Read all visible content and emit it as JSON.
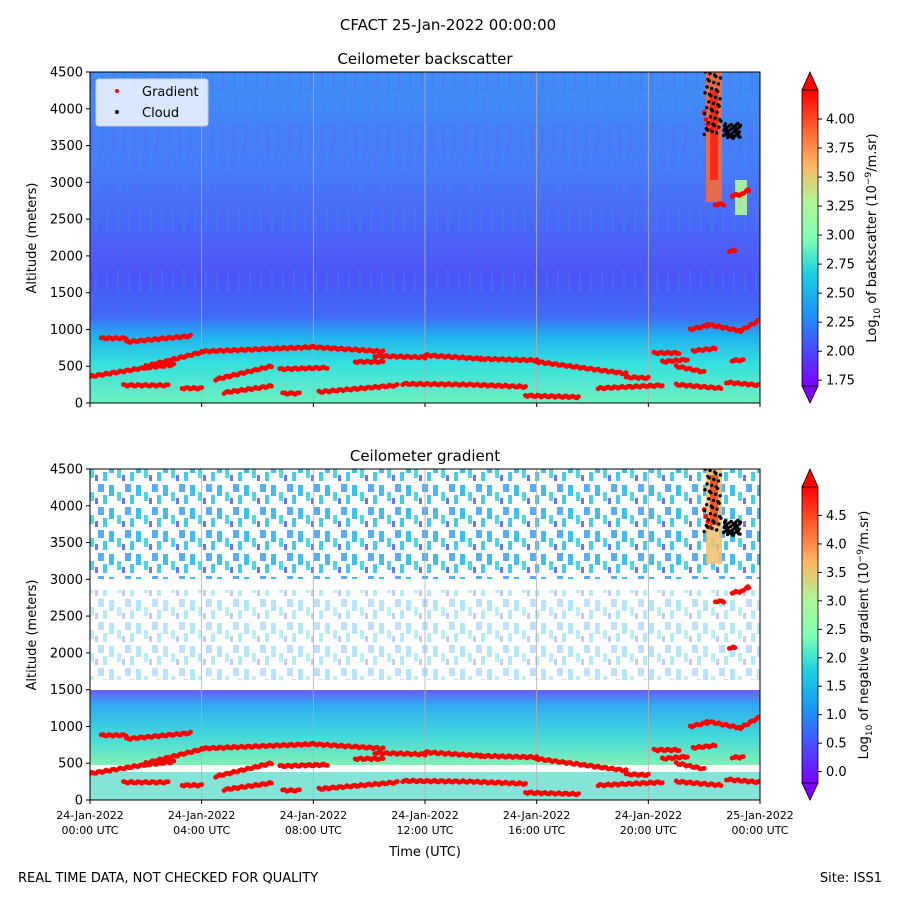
{
  "figure": {
    "suptitle": "CFACT 25-Jan-2022 00:00:00",
    "footer_left": "REAL TIME DATA, NOT CHECKED FOR QUALITY",
    "footer_right": "Site: ISS1"
  },
  "colors": {
    "gradient_marker": "#ff0000",
    "cloud_marker": "#000000",
    "grid": "#b0b0b0"
  },
  "chart_data": [
    {
      "type": "heatmap",
      "title": "Ceilometer backscatter",
      "ylabel": "Altitude (meters)",
      "xlabel": "",
      "xlim_hours": [
        0,
        24
      ],
      "ylim": [
        0,
        4500
      ],
      "yticks": [
        0,
        500,
        1000,
        1500,
        2000,
        2500,
        3000,
        3500,
        4000,
        4500
      ],
      "xticks_hours": [
        0,
        4,
        8,
        12,
        16,
        20,
        24
      ],
      "x_tick_labels_shown": false,
      "colorbar": {
        "label_prefix": "Log",
        "label_sub": "10",
        "label_mid": " of backscatter (10",
        "label_sup": "−9",
        "label_suffix": "/m.sr)",
        "range": [
          1.7,
          4.25
        ],
        "ticks": [
          "1.75",
          "2.00",
          "2.25",
          "2.50",
          "2.75",
          "3.00",
          "3.25",
          "3.50",
          "3.75",
          "4.00"
        ],
        "extend": "both"
      },
      "legend": {
        "position": "upper-left",
        "entries": [
          {
            "label": "Gradient",
            "color": "#ff0000"
          },
          {
            "label": "Cloud",
            "color": "#000000"
          }
        ]
      }
    },
    {
      "type": "heatmap",
      "title": "Ceilometer gradient",
      "ylabel": "Altitude (meters)",
      "xlabel": "Time (UTC)",
      "xlim_hours": [
        0,
        24
      ],
      "ylim": [
        0,
        4500
      ],
      "yticks": [
        0,
        500,
        1000,
        1500,
        2000,
        2500,
        3000,
        3500,
        4000,
        4500
      ],
      "xticks_hours": [
        0,
        4,
        8,
        12,
        16,
        20,
        24
      ],
      "x_tick_labels": [
        [
          "24-Jan-2022",
          "00:00 UTC"
        ],
        [
          "24-Jan-2022",
          "04:00 UTC"
        ],
        [
          "24-Jan-2022",
          "08:00 UTC"
        ],
        [
          "24-Jan-2022",
          "12:00 UTC"
        ],
        [
          "24-Jan-2022",
          "16:00 UTC"
        ],
        [
          "24-Jan-2022",
          "20:00 UTC"
        ],
        [
          "25-Jan-2022",
          "00:00 UTC"
        ]
      ],
      "colorbar": {
        "label_prefix": "Log",
        "label_sub": "10",
        "label_mid": " of negative gradient (10",
        "label_sup": "−9",
        "label_suffix": "/m.sr)",
        "range": [
          -0.2,
          5.0
        ],
        "ticks": [
          "0.0",
          "0.5",
          "1.0",
          "1.5",
          "2.0",
          "2.5",
          "3.0",
          "3.5",
          "4.0",
          "4.5"
        ],
        "extend": "both"
      }
    }
  ],
  "gradient_layers": [
    {
      "name": "upper",
      "segments": [
        {
          "h": [
            0.4,
            1.3
          ],
          "alt": [
            880,
            880
          ]
        },
        {
          "h": [
            1.3,
            3.6
          ],
          "alt": [
            830,
            910
          ]
        },
        {
          "h": [
            20.2,
            21.1
          ],
          "alt": [
            680,
            680
          ]
        },
        {
          "h": [
            21.5,
            22.1
          ],
          "alt": [
            1000,
            1050
          ]
        },
        {
          "h": [
            22.1,
            23.3
          ],
          "alt": [
            1070,
            980
          ]
        },
        {
          "h": [
            23.3,
            24.0
          ],
          "alt": [
            980,
            1130
          ]
        }
      ]
    },
    {
      "name": "middle",
      "segments": [
        {
          "h": [
            2.0,
            4.0
          ],
          "alt": [
            500,
            690
          ]
        },
        {
          "h": [
            4.0,
            8.0
          ],
          "alt": [
            700,
            760
          ]
        },
        {
          "h": [
            8.0,
            10.5
          ],
          "alt": [
            760,
            700
          ]
        },
        {
          "h": [
            10.2,
            12.0
          ],
          "alt": [
            640,
            620
          ]
        },
        {
          "h": [
            12.0,
            14.0
          ],
          "alt": [
            650,
            600
          ]
        },
        {
          "h": [
            14.0,
            16.0
          ],
          "alt": [
            600,
            580
          ]
        },
        {
          "h": [
            16.0,
            19.2
          ],
          "alt": [
            560,
            400
          ]
        },
        {
          "h": [
            20.5,
            21.4
          ],
          "alt": [
            560,
            590
          ]
        },
        {
          "h": [
            21.6,
            22.4
          ],
          "alt": [
            710,
            740
          ]
        },
        {
          "h": [
            23.0,
            23.4
          ],
          "alt": [
            580,
            580
          ]
        }
      ]
    },
    {
      "name": "lower",
      "segments": [
        {
          "h": [
            0.0,
            2.0
          ],
          "alt": [
            360,
            480
          ]
        },
        {
          "h": [
            2.0,
            3.0
          ],
          "alt": [
            480,
            520
          ]
        },
        {
          "h": [
            4.5,
            6.5
          ],
          "alt": [
            320,
            500
          ]
        },
        {
          "h": [
            6.8,
            8.5
          ],
          "alt": [
            460,
            480
          ]
        },
        {
          "h": [
            9.5,
            10.5
          ],
          "alt": [
            560,
            560
          ]
        },
        {
          "h": [
            19.2,
            20.0
          ],
          "alt": [
            350,
            340
          ]
        },
        {
          "h": [
            21.0,
            22.0
          ],
          "alt": [
            500,
            420
          ]
        }
      ]
    },
    {
      "name": "surface",
      "segments": [
        {
          "h": [
            1.2,
            2.8
          ],
          "alt": [
            240,
            240
          ]
        },
        {
          "h": [
            3.3,
            4.0
          ],
          "alt": [
            200,
            200
          ]
        },
        {
          "h": [
            4.8,
            6.5
          ],
          "alt": [
            140,
            230
          ]
        },
        {
          "h": [
            6.9,
            7.5
          ],
          "alt": [
            130,
            130
          ]
        },
        {
          "h": [
            8.2,
            11.0
          ],
          "alt": [
            150,
            240
          ]
        },
        {
          "h": [
            11.2,
            13.5
          ],
          "alt": [
            260,
            250
          ]
        },
        {
          "h": [
            13.6,
            15.6
          ],
          "alt": [
            250,
            220
          ]
        },
        {
          "h": [
            15.6,
            17.5
          ],
          "alt": [
            100,
            80
          ]
        },
        {
          "h": [
            18.2,
            20.5
          ],
          "alt": [
            200,
            240
          ]
        },
        {
          "h": [
            21.0,
            22.6
          ],
          "alt": [
            250,
            200
          ]
        },
        {
          "h": [
            22.8,
            24.0
          ],
          "alt": [
            280,
            240
          ]
        }
      ]
    },
    {
      "name": "high",
      "segments": [
        {
          "h": [
            22.4,
            22.7
          ],
          "alt": [
            2700,
            2700
          ]
        },
        {
          "h": [
            23.0,
            23.4
          ],
          "alt": [
            2820,
            2840
          ]
        },
        {
          "h": [
            23.5,
            23.6
          ],
          "alt": [
            2890,
            2890
          ]
        },
        {
          "h": [
            22.9,
            23.1
          ],
          "alt": [
            2070,
            2070
          ]
        },
        {
          "h": [
            22.0,
            22.2
          ],
          "alt": [
            3950,
            3700
          ]
        }
      ]
    }
  ],
  "cloud_clusters": [
    {
      "h": [
        22.0,
        22.6
      ],
      "alt": [
        3650,
        4500
      ]
    },
    {
      "h": [
        22.7,
        23.3
      ],
      "alt": [
        3600,
        3800
      ]
    }
  ]
}
